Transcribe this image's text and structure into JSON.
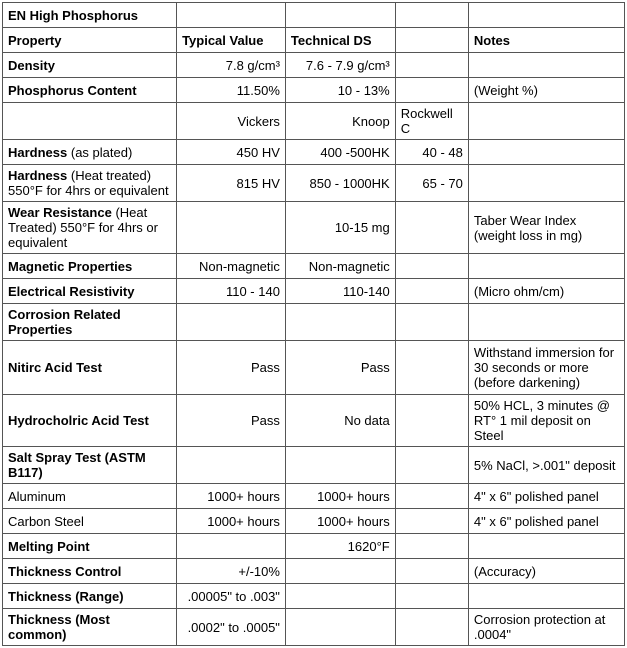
{
  "header": {
    "title": "EN High Phosphorus",
    "propertyLabel": "Property",
    "typicalValue": "Typical Value",
    "technicalDS": "Technical DS",
    "notes": "Notes"
  },
  "rows": {
    "density": {
      "label": "Density",
      "typ": "7.8 g/cm³",
      "ds": "7.6 - 7.9 g/cm³"
    },
    "phosphorus": {
      "label": "Phosphorus Content",
      "typ": "11.50%",
      "ds": "10 - 13%",
      "note": "(Weight %)"
    },
    "hardnessScales": {
      "vickers": "Vickers",
      "knoop": "Knoop",
      "rockwell": "Rockwell C"
    },
    "hardnessPlated": {
      "label": "Hardness",
      "suffix": " (as plated)",
      "typ": "450 HV",
      "ds": "400 -500HK",
      "rc": "40 - 48"
    },
    "hardnessHT": {
      "label": "Hardness",
      "suffix": " (Heat treated)  550°F for 4hrs or equivalent",
      "typ": "815 HV",
      "ds": "850 - 1000HK",
      "rc": "65 - 70"
    },
    "wear": {
      "label": "Wear Resistance",
      "suffix": " (Heat Treated) 550°F for 4hrs or equivalent",
      "ds": "10-15 mg",
      "note": "Taber Wear Index (weight loss in mg)"
    },
    "magnetic": {
      "label": "Magnetic Properties",
      "typ": "Non-magnetic",
      "ds": "Non-magnetic"
    },
    "resistivity": {
      "label": "Electrical Resistivity",
      "typ": "110 - 140",
      "ds": "110-140",
      "note": "(Micro ohm/cm)"
    },
    "corrosion": {
      "label": "Corrosion Related Properties"
    },
    "nitric": {
      "label": "Nitirc Acid Test",
      "typ": "Pass",
      "ds": "Pass",
      "note": "Withstand immersion for 30 seconds or more (before darkening)"
    },
    "hcl": {
      "label": "Hydrocholric Acid Test",
      "typ": "Pass",
      "ds": "No data",
      "note": "50% HCL, 3 minutes @ RT° 1 mil deposit on Steel"
    },
    "saltSpray": {
      "label": "Salt Spray Test (ASTM B117)",
      "note": "5% NaCl, >.001\" deposit"
    },
    "aluminum": {
      "label": "Aluminum",
      "typ": "1000+ hours",
      "ds": "1000+ hours",
      "note": "4\" x 6\" polished panel"
    },
    "carbonSteel": {
      "label": "Carbon Steel",
      "typ": "1000+ hours",
      "ds": "1000+ hours",
      "note": "4\" x 6\" polished panel"
    },
    "melting": {
      "label": "Melting Point",
      "ds": "1620°F"
    },
    "thicknessControl": {
      "label": "Thickness Control",
      "typ": "+/-10%",
      "note": "(Accuracy)"
    },
    "thicknessRange": {
      "label": "Thickness  (Range)",
      "typ": ".00005\" to .003\""
    },
    "thicknessCommon": {
      "label": "Thickness (Most common)",
      "typ": ".0002\" to .0005\"",
      "note": "Corrosion protection at .0004\""
    }
  }
}
